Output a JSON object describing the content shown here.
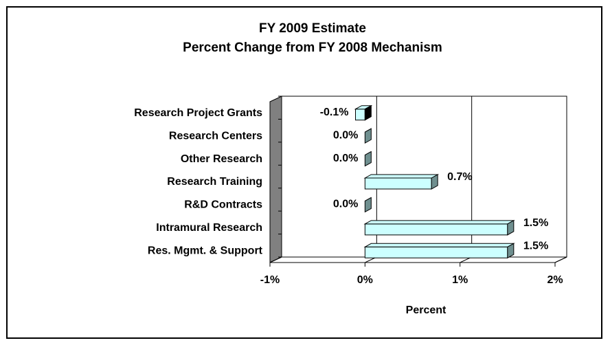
{
  "chart_data": {
    "type": "bar",
    "orientation": "horizontal",
    "title": "FY 2009 Estimate",
    "subtitle": "Percent Change from FY 2008 Mechanism",
    "x_label": "Percent",
    "categories": [
      "Research Project Grants",
      "Research Centers",
      "Other Research",
      "Research Training",
      "R&D Contracts",
      "Intramural Research",
      "Res. Mgmt. & Support"
    ],
    "values": [
      -0.1,
      0.0,
      0.0,
      0.7,
      0.0,
      1.5,
      1.5
    ],
    "value_labels": [
      "-0.1%",
      "0.0%",
      "0.0%",
      "0.7%",
      "0.0%",
      "1.5%",
      "1.5%"
    ],
    "color": "#ccffff",
    "xlim": [
      -1,
      2
    ],
    "xticks": [
      {
        "value": -1,
        "label": "-1%"
      },
      {
        "value": 0,
        "label": "0%"
      },
      {
        "value": 1,
        "label": "1%"
      },
      {
        "value": 2,
        "label": "2%"
      }
    ],
    "grid": true
  }
}
